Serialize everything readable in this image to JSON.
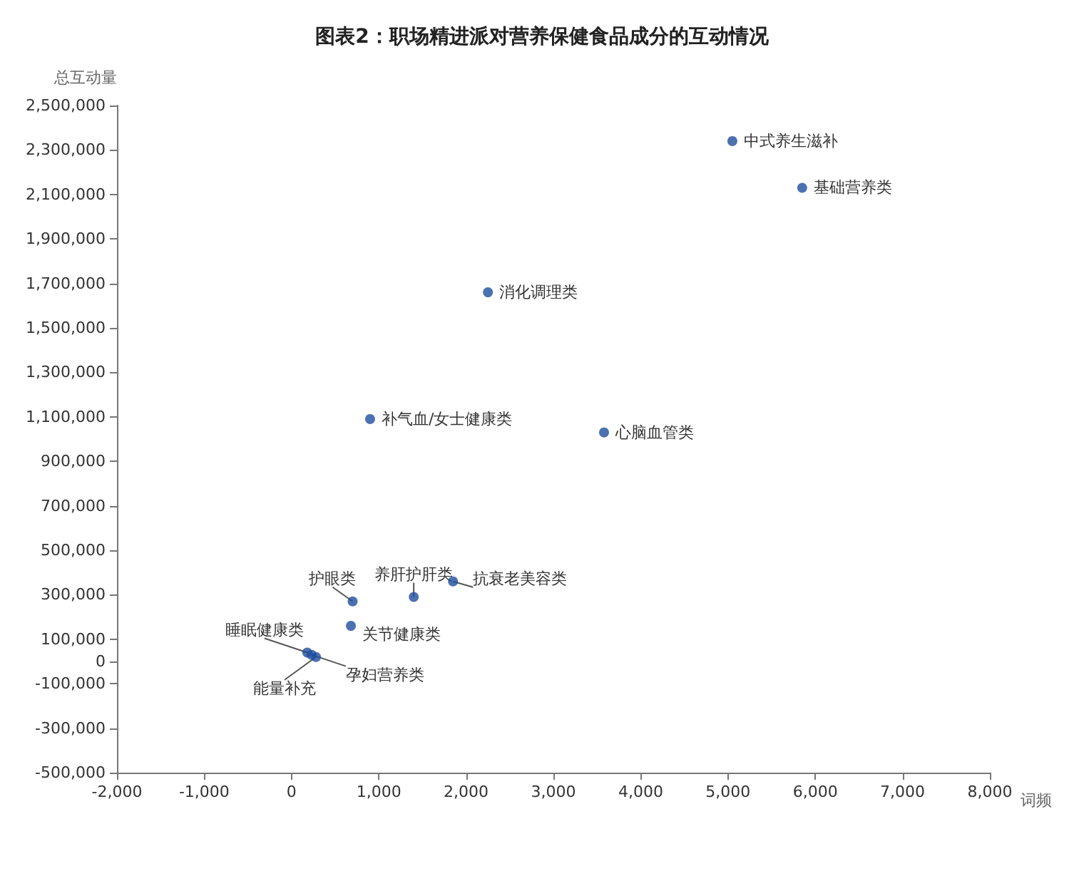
{
  "chart_data": {
    "type": "scatter",
    "title": "图表2：职场精进派对营养保健食品成分的互动情况",
    "xlabel": "词频",
    "ylabel": "总互动量",
    "x": [
      5050,
      5850,
      2250,
      900,
      3580,
      1850,
      1400,
      700,
      680,
      180,
      230,
      280
    ],
    "values": [
      2340000,
      2130000,
      1660000,
      1090000,
      1030000,
      360000,
      290000,
      270000,
      160000,
      40000,
      30000,
      20000
    ],
    "color": "#1f4e9c",
    "marker": "circle",
    "xlim": [
      -2000,
      8000
    ],
    "xticks": [
      {
        "value": -2000,
        "label": "-2,000"
      },
      {
        "value": -1000,
        "label": "-1,000"
      },
      0,
      {
        "value": 1000,
        "label": "1,000"
      },
      {
        "value": 2000,
        "label": "2,000"
      },
      {
        "value": 3000,
        "label": "3,000"
      },
      {
        "value": 4000,
        "label": "4,000"
      },
      {
        "value": 5000,
        "label": "5,000"
      },
      {
        "value": 6000,
        "label": "6,000"
      },
      {
        "value": 7000,
        "label": "7,000"
      },
      {
        "value": 8000,
        "label": "8,000"
      }
    ],
    "ylim": [
      -500000,
      2500000
    ],
    "yticks": [
      {
        "value": -500000,
        "label": "-500,000"
      },
      {
        "value": -300000,
        "label": "-300,000"
      },
      {
        "value": -100000,
        "label": "-100,000"
      },
      0,
      {
        "value": 100000,
        "label": "100,000"
      },
      {
        "value": 300000,
        "label": "300,000"
      },
      {
        "value": 500000,
        "label": "500,000"
      },
      {
        "value": 700000,
        "label": "700,000"
      },
      {
        "value": 900000,
        "label": "900,000"
      },
      {
        "value": 1100000,
        "label": "1,100,000"
      },
      {
        "value": 1300000,
        "label": "1,300,000"
      },
      {
        "value": 1500000,
        "label": "1,500,000"
      },
      {
        "value": 1700000,
        "label": "1,700,000"
      },
      {
        "value": 1900000,
        "label": "1,900,000"
      },
      {
        "value": 2100000,
        "label": "2,100,000"
      },
      {
        "value": 2300000,
        "label": "2,300,000"
      },
      {
        "value": 2500000,
        "label": "2,500,000"
      }
    ],
    "annotations": [
      {
        "text": "中式养生滋补",
        "x": 5050,
        "y": 2340000
      },
      {
        "text": "基础营养类",
        "x": 5850,
        "y": 2130000
      },
      {
        "text": "消化调理类",
        "x": 2250,
        "y": 1660000
      },
      {
        "text": "补气血/女士健康类",
        "x": 900,
        "y": 1090000
      },
      {
        "text": "心脑血管类",
        "x": 3580,
        "y": 1030000
      },
      {
        "text": "抗衰老美容类",
        "x": 1850,
        "y": 360000
      },
      {
        "text": "养肝护肝类",
        "x": 1400,
        "y": 290000
      },
      {
        "text": "护眼类",
        "x": 700,
        "y": 270000
      },
      {
        "text": "关节健康类",
        "x": 680,
        "y": 160000
      },
      {
        "text": "睡眠健康类",
        "x": 180,
        "y": 40000
      },
      {
        "text": "孕妇营养类",
        "x": 230,
        "y": 30000
      },
      {
        "text": "能量补充",
        "x": 280,
        "y": 20000
      }
    ]
  }
}
